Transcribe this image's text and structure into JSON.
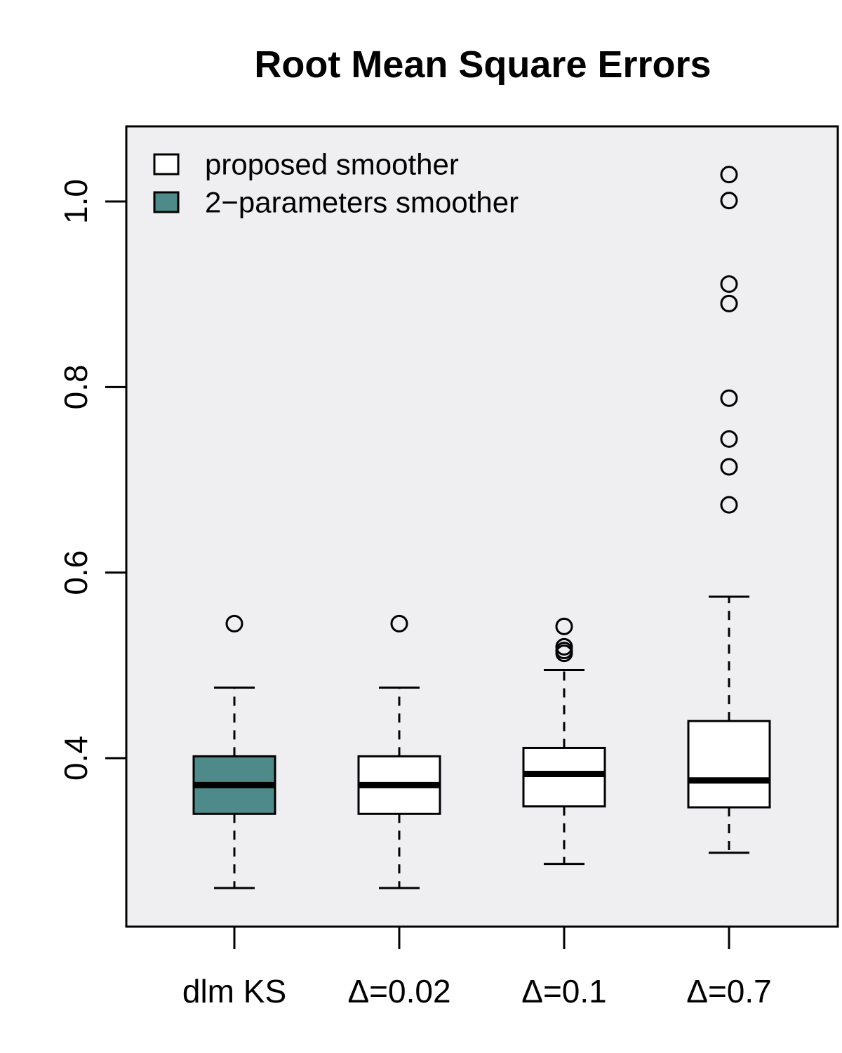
{
  "chart_data": {
    "type": "box",
    "title": "Root Mean Square Errors",
    "xlabel": "",
    "ylabel": "",
    "ylim": [
      0.22,
      1.08
    ],
    "yticks": [
      0.4,
      0.6,
      0.8,
      1.0
    ],
    "ytick_labels": [
      "0.4",
      "0.6",
      "0.8",
      "1.0"
    ],
    "categories": [
      "dlm KS",
      "Δ=0.02",
      "Δ=0.1",
      "Δ=0.7"
    ],
    "plot_background": "#efeff1",
    "legend": {
      "position": "top-left",
      "entries": [
        {
          "label": "proposed smoother",
          "color": "#ffffff"
        },
        {
          "label": "2−parameters smoother",
          "color": "#4e8a8a"
        }
      ]
    },
    "boxes": [
      {
        "category": "dlm KS",
        "fill": "#4e8a8a",
        "whisker_low": 0.26,
        "q1": 0.34,
        "median": 0.371,
        "q3": 0.402,
        "whisker_high": 0.476,
        "outliers": [
          0.545
        ]
      },
      {
        "category": "Δ=0.02",
        "fill": "#ffffff",
        "whisker_low": 0.26,
        "q1": 0.34,
        "median": 0.371,
        "q3": 0.402,
        "whisker_high": 0.476,
        "outliers": [
          0.545
        ]
      },
      {
        "category": "Δ=0.1",
        "fill": "#ffffff",
        "whisker_low": 0.286,
        "q1": 0.348,
        "median": 0.383,
        "q3": 0.411,
        "whisker_high": 0.495,
        "outliers": [
          0.513,
          0.516,
          0.52,
          0.542
        ]
      },
      {
        "category": "Δ=0.7",
        "fill": "#ffffff",
        "whisker_low": 0.298,
        "q1": 0.347,
        "median": 0.376,
        "q3": 0.44,
        "whisker_high": 0.574,
        "outliers": [
          0.673,
          0.714,
          0.744,
          0.788,
          0.89,
          0.911,
          1.001,
          1.029
        ]
      }
    ]
  }
}
